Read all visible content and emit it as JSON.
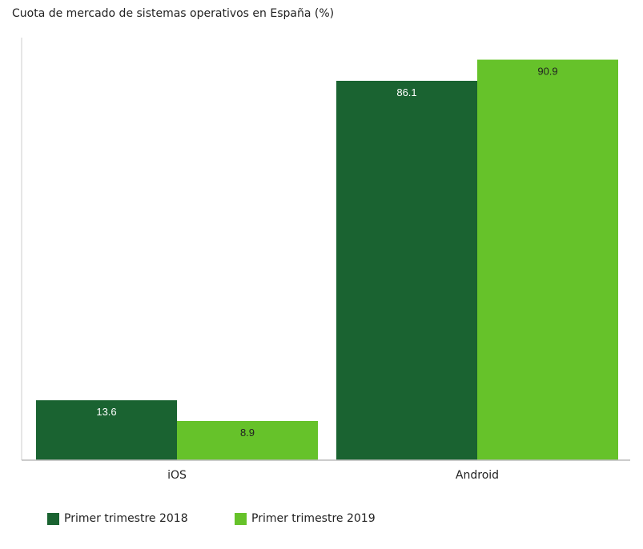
{
  "chart_data": {
    "type": "bar",
    "title": "Cuota de mercado de sistemas operativos en España (%)",
    "categories": [
      "iOS",
      "Android"
    ],
    "series": [
      {
        "name": "Primer trimestre 2018",
        "values": [
          13.6,
          86.1
        ],
        "color": "#1a6331",
        "label_color": "#ffffff"
      },
      {
        "name": "Primer trimestre 2019",
        "values": [
          8.9,
          90.9
        ],
        "color": "#66c22a",
        "label_color": "#222222"
      }
    ],
    "ylim": [
      0,
      91
    ],
    "grid": false,
    "legend_position": "bottom-left"
  }
}
